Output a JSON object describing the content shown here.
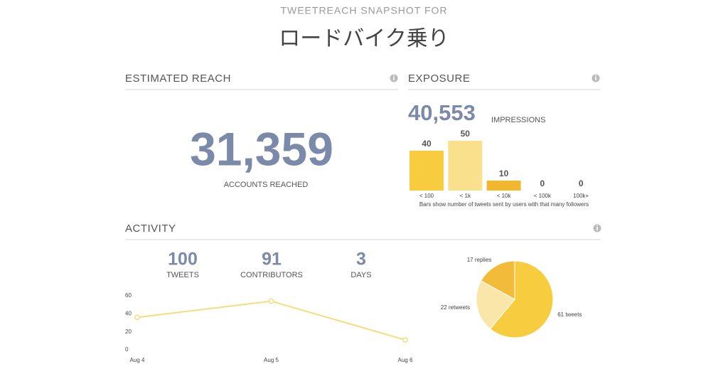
{
  "header": {
    "subtitle": "TWEETREACH SNAPSHOT FOR",
    "title": "ロードバイク乗り"
  },
  "reach": {
    "heading": "ESTIMATED REACH",
    "value": "31,359",
    "label": "ACCOUNTS REACHED"
  },
  "exposure": {
    "heading": "EXPOSURE",
    "impressions": "40,553",
    "impressions_label": "IMPRESSIONS"
  },
  "activity": {
    "heading": "ACTIVITY",
    "stats": [
      {
        "value": "100",
        "label": "TWEETS"
      },
      {
        "value": "91",
        "label": "CONTRIBUTORS"
      },
      {
        "value": "3",
        "label": "DAYS"
      }
    ]
  },
  "chart_data": [
    {
      "type": "bar",
      "categories": [
        "< 100",
        "< 1k",
        "< 10k",
        "< 100k",
        "100k+"
      ],
      "values": [
        40,
        50,
        10,
        0,
        0
      ],
      "colors": [
        "#f7cd3f",
        "#f9e08c",
        "#f1b72e",
        "#f1b72e",
        "#f1b72e"
      ],
      "caption": "Bars show number of tweets sent by users with that many followers"
    },
    {
      "type": "line",
      "categories": [
        "Aug 4",
        "Aug 5",
        "Aug 6"
      ],
      "series": [
        {
          "color": "#f6dc7c",
          "values": [
            36,
            54,
            11
          ]
        }
      ],
      "ylim": [
        0,
        60
      ],
      "yticks": [
        0,
        20,
        40,
        60
      ]
    },
    {
      "type": "pie",
      "values": [
        61,
        22,
        17
      ],
      "value_labels": [
        "61 tweets",
        "22 retweets",
        "17 replies"
      ],
      "colors": [
        "#f7cd3f",
        "#f9e6a8",
        "#f2bc3a"
      ]
    }
  ]
}
